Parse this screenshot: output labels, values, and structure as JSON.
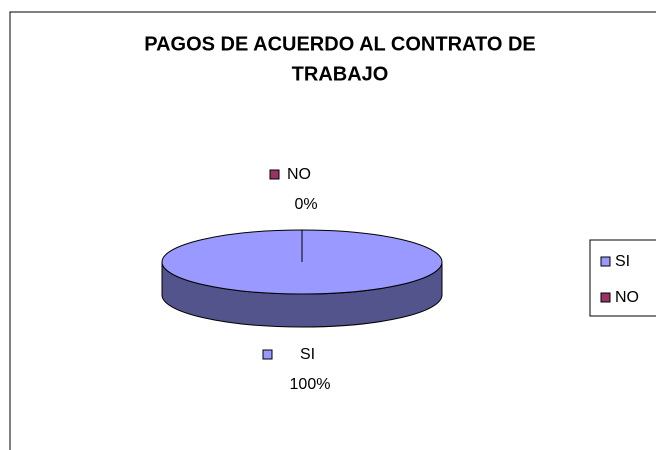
{
  "chart_data": {
    "type": "pie",
    "title": "PAGOS DE ACUERDO AL CONTRATO DE TRABAJO",
    "categories": [
      "SI",
      "NO"
    ],
    "values": [
      100,
      0
    ],
    "value_labels": [
      "100%",
      "0%"
    ],
    "colors": [
      "#9999ff",
      "#993366"
    ],
    "legend": "right"
  }
}
